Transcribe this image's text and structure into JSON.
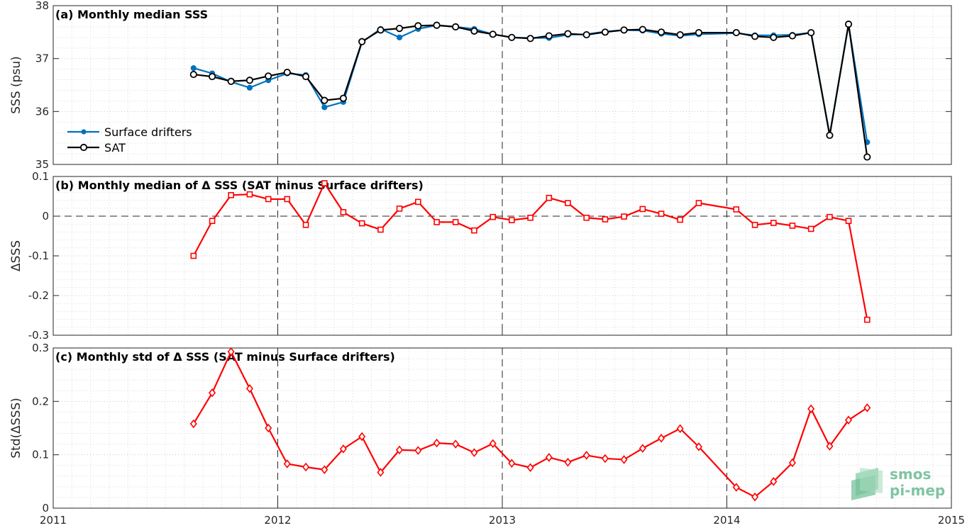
{
  "colors": {
    "drifters": "#0072bd",
    "sat": "#000000",
    "delta": "#ff0000",
    "grid_minor": "#d9d9d9",
    "axis": "#262626",
    "logo": "#7fc4a2"
  },
  "x_axis": {
    "range": [
      2011,
      2015
    ],
    "ticks": [
      2011,
      2012,
      2013,
      2014,
      2015
    ],
    "tick_labels": [
      "2011",
      "2012",
      "2013",
      "2014",
      "2015"
    ]
  },
  "logo": {
    "line1": "smos",
    "line2": "pi-mep"
  },
  "chart_data": [
    {
      "type": "line",
      "title": "(a) Monthly median SSS",
      "ylabel": "SSS (psu)",
      "ylim": [
        35,
        38
      ],
      "yticks": [
        35,
        36,
        37,
        38
      ],
      "ytick_labels": [
        "35",
        "36",
        "37",
        "38"
      ],
      "legend_position": "lower-left",
      "x": [
        2011.625,
        2011.708,
        2011.792,
        2011.875,
        2011.958,
        2012.042,
        2012.125,
        2012.208,
        2012.292,
        2012.375,
        2012.458,
        2012.542,
        2012.625,
        2012.708,
        2012.792,
        2012.875,
        2012.958,
        2013.042,
        2013.125,
        2013.208,
        2013.292,
        2013.375,
        2013.458,
        2013.542,
        2013.625,
        2013.708,
        2013.792,
        2013.875,
        2014.042,
        2014.125,
        2014.208,
        2014.292,
        2014.375,
        2014.458,
        2014.542,
        2014.625
      ],
      "series": [
        {
          "name": "Surface drifters",
          "marker": "dot",
          "values": [
            36.82,
            36.72,
            36.56,
            36.45,
            36.59,
            36.72,
            36.69,
            36.08,
            36.18,
            37.31,
            37.56,
            37.4,
            37.56,
            37.63,
            37.6,
            37.56,
            37.46,
            37.4,
            37.39,
            37.39,
            37.45,
            37.46,
            37.51,
            37.54,
            37.53,
            37.47,
            37.43,
            37.46,
            37.48,
            37.44,
            37.44,
            37.45,
            37.49,
            35.55,
            37.65,
            35.42
          ]
        },
        {
          "name": "SAT",
          "marker": "circle",
          "values": [
            36.7,
            36.66,
            36.57,
            36.59,
            36.67,
            36.74,
            36.66,
            36.21,
            36.25,
            37.32,
            37.54,
            37.57,
            37.62,
            37.63,
            37.6,
            37.52,
            37.46,
            37.4,
            37.38,
            37.43,
            37.47,
            37.45,
            37.5,
            37.54,
            37.55,
            37.5,
            37.45,
            37.49,
            37.49,
            37.42,
            37.4,
            37.43,
            37.49,
            35.55,
            37.65,
            35.14
          ]
        }
      ]
    },
    {
      "type": "line",
      "title": "(b) Monthly median of Δ SSS (SAT minus Surface drifters)",
      "ylabel": "ΔSSS",
      "ylim": [
        -0.3,
        0.1
      ],
      "yticks": [
        -0.3,
        -0.2,
        -0.1,
        0,
        0.1
      ],
      "ytick_labels": [
        "-0.3",
        "-0.2",
        "-0.1",
        "0",
        "0.1"
      ],
      "zero_line": true,
      "x": [
        2011.625,
        2011.708,
        2011.792,
        2011.875,
        2011.958,
        2012.042,
        2012.125,
        2012.208,
        2012.292,
        2012.375,
        2012.458,
        2012.542,
        2012.625,
        2012.708,
        2012.792,
        2012.875,
        2012.958,
        2013.042,
        2013.125,
        2013.208,
        2013.292,
        2013.375,
        2013.458,
        2013.542,
        2013.625,
        2013.708,
        2013.792,
        2013.875,
        2014.042,
        2014.125,
        2014.208,
        2014.292,
        2014.375,
        2014.458,
        2014.542,
        2014.625
      ],
      "series": [
        {
          "marker": "square",
          "values": [
            -0.1,
            -0.012,
            0.053,
            0.055,
            0.043,
            0.043,
            -0.022,
            0.083,
            0.01,
            -0.018,
            -0.034,
            0.019,
            0.036,
            -0.015,
            -0.015,
            -0.036,
            -0.002,
            -0.01,
            -0.004,
            0.046,
            0.033,
            -0.004,
            -0.008,
            -0.001,
            0.018,
            0.006,
            -0.009,
            0.033,
            0.017,
            -0.022,
            -0.017,
            -0.024,
            -0.032,
            -0.002,
            -0.012,
            -0.261
          ]
        }
      ]
    },
    {
      "type": "line",
      "title": "(c) Monthly std of Δ SSS (SAT minus Surface drifters)",
      "ylabel": "Std(ΔSSS)",
      "ylim": [
        0,
        0.3
      ],
      "yticks": [
        0,
        0.1,
        0.2,
        0.3
      ],
      "ytick_labels": [
        "0",
        "0.1",
        "0.2",
        "0.3"
      ],
      "x": [
        2011.625,
        2011.708,
        2011.792,
        2011.875,
        2011.958,
        2012.042,
        2012.125,
        2012.208,
        2012.292,
        2012.375,
        2012.458,
        2012.542,
        2012.625,
        2012.708,
        2012.792,
        2012.875,
        2012.958,
        2013.042,
        2013.125,
        2013.208,
        2013.292,
        2013.375,
        2013.458,
        2013.542,
        2013.625,
        2013.708,
        2013.792,
        2013.875,
        2014.042,
        2014.125,
        2014.208,
        2014.292,
        2014.375,
        2014.458,
        2014.542,
        2014.625
      ],
      "series": [
        {
          "marker": "diamond",
          "values": [
            0.158,
            0.216,
            0.293,
            0.224,
            0.15,
            0.083,
            0.077,
            0.072,
            0.111,
            0.134,
            0.067,
            0.109,
            0.108,
            0.122,
            0.12,
            0.104,
            0.121,
            0.084,
            0.076,
            0.095,
            0.086,
            0.099,
            0.093,
            0.091,
            0.112,
            0.131,
            0.149,
            0.115,
            0.039,
            0.021,
            0.05,
            0.085,
            0.186,
            0.116,
            0.165,
            0.188
          ]
        }
      ]
    }
  ]
}
